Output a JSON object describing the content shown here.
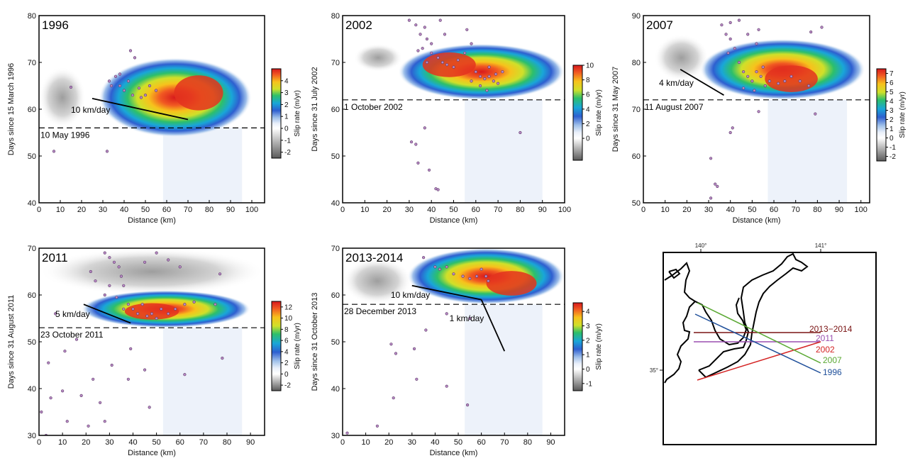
{
  "chart_data": [
    {
      "type": "heatmap",
      "title": "1996",
      "xlabel": "Distance (km)",
      "ylabel": "Days since 15 March 1996",
      "xlim": [
        0,
        106
      ],
      "ylim": [
        40,
        80
      ],
      "xticks": [
        0,
        10,
        20,
        30,
        40,
        50,
        60,
        70,
        80,
        90,
        100
      ],
      "yticks": [
        40,
        50,
        60,
        70,
        80
      ],
      "colorbar": {
        "label": "Slip rate (m/yr)",
        "ticks": [
          -2,
          -1,
          0,
          1,
          2,
          3,
          4
        ],
        "range": [
          -2.5,
          5
        ]
      },
      "start_date_label": "10 May 1996",
      "start_day": 56,
      "velocity": {
        "label": "10 km/day",
        "line": [
          [
            25,
            62.3
          ],
          [
            70,
            57.8
          ]
        ]
      },
      "slip_blob": {
        "x_range": [
          28,
          100
        ],
        "y_range": [
          54,
          71
        ],
        "peak": [
          75,
          63.5
        ]
      },
      "negative_region": {
        "x_range": [
          0,
          22
        ],
        "y_range": [
          56,
          69
        ]
      },
      "seismicity": [
        [
          7,
          51
        ],
        [
          32,
          51
        ],
        [
          43,
          72.5
        ],
        [
          45,
          71
        ],
        [
          33,
          66
        ],
        [
          36,
          67
        ],
        [
          38,
          65
        ],
        [
          40,
          64
        ],
        [
          42,
          66
        ],
        [
          44,
          63
        ],
        [
          47,
          64.5
        ],
        [
          50,
          63
        ],
        [
          52,
          65
        ],
        [
          48,
          62.5
        ],
        [
          55,
          64
        ],
        [
          15,
          64.7
        ],
        [
          34,
          65
        ],
        [
          38,
          67.5
        ]
      ]
    },
    {
      "type": "heatmap",
      "title": "2002",
      "xlabel": "Distance (km)",
      "ylabel": "Days since 31 July 2002",
      "xlim": [
        0,
        100
      ],
      "ylim": [
        40,
        80
      ],
      "xticks": [
        0,
        10,
        20,
        30,
        40,
        50,
        60,
        70,
        80,
        90,
        100
      ],
      "yticks": [
        40,
        50,
        60,
        70,
        80
      ],
      "colorbar": {
        "label": "Slip rate (m/yr)",
        "ticks": [
          0,
          2,
          4,
          6,
          8,
          10
        ],
        "range": [
          -3,
          10
        ]
      },
      "start_date_label": "1 October 2002",
      "start_day": 62,
      "slip_blob": {
        "x_range": [
          25,
          100
        ],
        "y_range": [
          62,
          74
        ],
        "peak": [
          48,
          69.5
        ]
      },
      "negative_region": {
        "x_range": [
          5,
          27
        ],
        "y_range": [
          68,
          74
        ]
      },
      "seismicity": [
        [
          31,
          53
        ],
        [
          33,
          52.5
        ],
        [
          34,
          48.5
        ],
        [
          37,
          56
        ],
        [
          39,
          47
        ],
        [
          42,
          43
        ],
        [
          43,
          42.8
        ],
        [
          80,
          55
        ],
        [
          30,
          79
        ],
        [
          33,
          78
        ],
        [
          35,
          76
        ],
        [
          37,
          77.5
        ],
        [
          38,
          75
        ],
        [
          40,
          74
        ],
        [
          36,
          73
        ],
        [
          34,
          72.5
        ],
        [
          43,
          71
        ],
        [
          45,
          70
        ],
        [
          47,
          69.5
        ],
        [
          50,
          69
        ],
        [
          52,
          70.5
        ],
        [
          55,
          72
        ],
        [
          58,
          74
        ],
        [
          56,
          77
        ],
        [
          60,
          68
        ],
        [
          62,
          67
        ],
        [
          64,
          66.5
        ],
        [
          66,
          67
        ],
        [
          68,
          66
        ],
        [
          70,
          65.5
        ],
        [
          65,
          64
        ],
        [
          62,
          65
        ],
        [
          58,
          66
        ],
        [
          66,
          69
        ],
        [
          69,
          67.5
        ],
        [
          72,
          68
        ],
        [
          40,
          72
        ],
        [
          38,
          70
        ],
        [
          46,
          76
        ],
        [
          44,
          79
        ]
      ]
    },
    {
      "type": "heatmap",
      "title": "2007",
      "xlabel": "Distance (km)",
      "ylabel": "Days since 31 May 2007",
      "xlim": [
        0,
        104
      ],
      "ylim": [
        50,
        90
      ],
      "xticks": [
        0,
        10,
        20,
        30,
        40,
        50,
        60,
        70,
        80,
        90,
        100
      ],
      "yticks": [
        50,
        60,
        70,
        80,
        90
      ],
      "colorbar": {
        "label": "Slip rate (m/yr)",
        "ticks": [
          -2,
          -1,
          0,
          1,
          2,
          3,
          4,
          5,
          6,
          7
        ],
        "range": [
          -2.5,
          7.5
        ]
      },
      "start_date_label": "11 August 2007",
      "start_day": 72,
      "velocity": {
        "label": "4 km/day",
        "line": [
          [
            17,
            78.5
          ],
          [
            37,
            73
          ]
        ]
      },
      "slip_blob": {
        "x_range": [
          26,
          102
        ],
        "y_range": [
          72,
          85
        ],
        "peak": [
          68,
          76.5
        ]
      },
      "negative_region": {
        "x_range": [
          5,
          30
        ],
        "y_range": [
          76,
          86
        ]
      },
      "seismicity": [
        [
          31,
          59.5
        ],
        [
          33,
          54
        ],
        [
          34,
          53.5
        ],
        [
          31,
          51
        ],
        [
          40,
          65
        ],
        [
          41,
          66
        ],
        [
          53,
          69.5
        ],
        [
          79,
          69
        ],
        [
          82,
          87.5
        ],
        [
          77,
          86.5
        ],
        [
          36,
          88
        ],
        [
          38,
          86
        ],
        [
          40,
          85
        ],
        [
          42,
          83
        ],
        [
          39,
          82
        ],
        [
          44,
          80
        ],
        [
          46,
          78
        ],
        [
          48,
          77
        ],
        [
          50,
          76
        ],
        [
          52,
          78
        ],
        [
          54,
          77
        ],
        [
          56,
          75
        ],
        [
          58,
          76
        ],
        [
          62,
          75.5
        ],
        [
          65,
          76
        ],
        [
          68,
          77
        ],
        [
          72,
          76
        ],
        [
          76,
          75
        ],
        [
          52,
          84
        ],
        [
          53,
          87
        ],
        [
          48,
          86
        ],
        [
          40,
          88.5
        ],
        [
          44,
          89
        ],
        [
          51,
          74
        ],
        [
          46,
          74.5
        ],
        [
          55,
          79
        ]
      ]
    },
    {
      "type": "heatmap",
      "title": "2011",
      "xlabel": "Distance (km)",
      "ylabel": "Days since 31 August 2011",
      "xlim": [
        0,
        96
      ],
      "ylim": [
        30,
        70
      ],
      "xticks": [
        0,
        10,
        20,
        30,
        40,
        50,
        60,
        70,
        80,
        90
      ],
      "yticks": [
        30,
        40,
        50,
        60,
        70
      ],
      "colorbar": {
        "label": "Slip rate (m/yr)",
        "ticks": [
          -2,
          0,
          2,
          4,
          6,
          8,
          10,
          12
        ],
        "range": [
          -3,
          13
        ]
      },
      "start_date_label": "23 October 2011",
      "start_day": 53,
      "velocity": {
        "label": "5 km/day",
        "line": [
          [
            19,
            58
          ],
          [
            39,
            54
          ]
        ]
      },
      "slip_blob": {
        "x_range": [
          18,
          90
        ],
        "y_range": [
          53,
          61
        ],
        "peak": [
          48,
          56.5
        ]
      },
      "negative_region": {
        "x_range": [
          0,
          96
        ],
        "y_range": [
          60,
          70
        ]
      },
      "seismicity": [
        [
          1,
          35
        ],
        [
          3,
          30
        ],
        [
          4,
          45.5
        ],
        [
          5,
          38
        ],
        [
          7,
          56
        ],
        [
          10,
          39.5
        ],
        [
          11,
          48
        ],
        [
          12,
          33
        ],
        [
          16,
          50.5
        ],
        [
          18,
          38.5
        ],
        [
          21,
          32
        ],
        [
          23,
          42
        ],
        [
          26,
          37
        ],
        [
          28,
          33
        ],
        [
          31,
          45
        ],
        [
          38,
          42
        ],
        [
          39,
          48.5
        ],
        [
          45,
          44
        ],
        [
          47,
          36
        ],
        [
          62,
          43
        ],
        [
          78,
          46.5
        ],
        [
          28,
          69
        ],
        [
          30,
          68
        ],
        [
          32,
          67
        ],
        [
          34,
          66
        ],
        [
          35,
          64
        ],
        [
          36,
          62
        ],
        [
          30,
          62
        ],
        [
          28,
          60
        ],
        [
          33,
          59.5
        ],
        [
          38,
          58
        ],
        [
          40,
          57
        ],
        [
          42,
          56
        ],
        [
          46,
          55.5
        ],
        [
          48,
          56
        ],
        [
          50,
          55
        ],
        [
          52,
          57
        ],
        [
          55,
          56
        ],
        [
          58,
          57
        ],
        [
          62,
          58
        ],
        [
          66,
          58.5
        ],
        [
          75,
          58
        ],
        [
          45,
          67
        ],
        [
          50,
          69
        ],
        [
          55,
          67.5
        ],
        [
          60,
          66
        ],
        [
          77,
          64.5
        ],
        [
          22,
          65
        ],
        [
          24,
          63
        ],
        [
          36,
          57
        ],
        [
          44,
          58
        ]
      ]
    },
    {
      "type": "heatmap",
      "title": "2013-2014",
      "xlabel": "Distance (km)",
      "ylabel": "Days since 31 October 2013",
      "xlim": [
        0,
        96
      ],
      "ylim": [
        30,
        70
      ],
      "xticks": [
        0,
        10,
        20,
        30,
        40,
        50,
        60,
        70,
        80,
        90
      ],
      "yticks": [
        30,
        40,
        50,
        60,
        70
      ],
      "colorbar": {
        "label": "Slip rate (m/yr)",
        "ticks": [
          -1,
          0,
          1,
          2,
          3,
          4
        ],
        "range": [
          -1.5,
          4.6
        ]
      },
      "start_date_label": "28 December 2013",
      "start_day": 58,
      "velocities": [
        {
          "label": "10 km/day",
          "line": [
            [
              30,
              62
            ],
            [
              60,
              59
            ]
          ]
        },
        {
          "label": "1 km/day",
          "line": [
            [
              60,
              59
            ],
            [
              70,
              48
            ]
          ]
        }
      ],
      "slip_blob": {
        "x_range": [
          28,
          96
        ],
        "y_range": [
          58,
          70
        ],
        "peak": [
          73,
          62.5
        ]
      },
      "negative_region": {
        "x_range": [
          0,
          30
        ],
        "y_range": [
          58,
          68
        ]
      },
      "seismicity": [
        [
          2,
          30.5
        ],
        [
          15,
          32
        ],
        [
          21,
          49.5
        ],
        [
          22,
          38
        ],
        [
          23,
          47.5
        ],
        [
          31,
          48.5
        ],
        [
          32,
          42
        ],
        [
          36,
          52.5
        ],
        [
          45,
          40.5
        ],
        [
          54,
          36.5
        ],
        [
          55,
          55
        ],
        [
          45,
          56
        ],
        [
          35,
          68
        ],
        [
          40,
          66
        ],
        [
          42,
          65.5
        ],
        [
          45,
          66
        ],
        [
          48,
          64.5
        ],
        [
          52,
          64
        ],
        [
          55,
          63.5
        ],
        [
          58,
          64
        ],
        [
          60,
          65.5
        ],
        [
          62,
          64
        ],
        [
          63,
          63
        ]
      ]
    }
  ],
  "map": {
    "lon_labels": [
      "140°",
      "141°"
    ],
    "lat_label": "35°",
    "profiles": [
      {
        "label": "2013−2014",
        "color": "#7a1414"
      },
      {
        "label": "2011",
        "color": "#9a4fb0"
      },
      {
        "label": "2002",
        "color": "#d42323"
      },
      {
        "label": "2007",
        "color": "#5aa832"
      },
      {
        "label": "1996",
        "color": "#1f4f9a"
      }
    ]
  }
}
